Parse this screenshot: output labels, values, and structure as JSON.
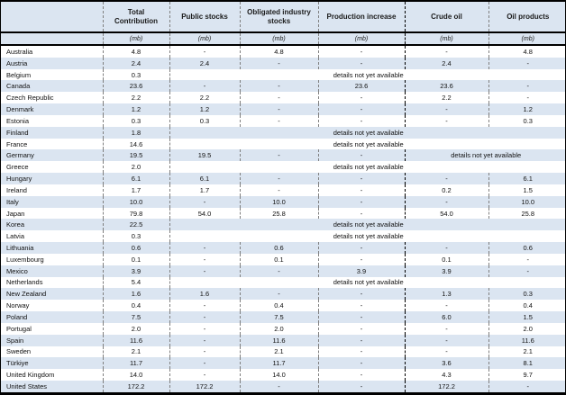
{
  "table": {
    "details_text": "details not yet available",
    "columns": [
      {
        "label": "",
        "unit": ""
      },
      {
        "label": "Total Contribution",
        "unit": "(mb)"
      },
      {
        "label": "Public stocks",
        "unit": "(mb)"
      },
      {
        "label": "Obligated industry stocks",
        "unit": "(mb)"
      },
      {
        "label": "Production increase",
        "unit": "(mb)"
      },
      {
        "label": "Crude oil",
        "unit": "(mb)"
      },
      {
        "label": "Oil products",
        "unit": "(mb)"
      }
    ],
    "rows": [
      {
        "country": "Australia",
        "values": [
          "4.8",
          "-",
          "4.8",
          "-",
          "-",
          "4.8"
        ]
      },
      {
        "country": "Austria",
        "values": [
          "2.4",
          "2.4",
          "-",
          "-",
          "2.4",
          "-"
        ]
      },
      {
        "country": "Belgium",
        "values": [
          "0.3"
        ],
        "merged": "all"
      },
      {
        "country": "Canada",
        "values": [
          "23.6",
          "-",
          "-",
          "23.6",
          "23.6",
          "-"
        ]
      },
      {
        "country": "Czech Republic",
        "values": [
          "2.2",
          "2.2",
          "-",
          "-",
          "2.2",
          "-"
        ]
      },
      {
        "country": "Denmark",
        "values": [
          "1.2",
          "1.2",
          "-",
          "-",
          "-",
          "1.2"
        ]
      },
      {
        "country": "Estonia",
        "values": [
          "0.3",
          "0.3",
          "-",
          "-",
          "-",
          "0.3"
        ]
      },
      {
        "country": "Finland",
        "values": [
          "1.8"
        ],
        "merged": "all"
      },
      {
        "country": "France",
        "values": [
          "14.6"
        ],
        "merged": "all"
      },
      {
        "country": "Germany",
        "values": [
          "19.5",
          "19.5",
          "-",
          "-"
        ],
        "merged": "right2"
      },
      {
        "country": "Greece",
        "values": [
          "2.0"
        ],
        "merged": "all"
      },
      {
        "country": "Hungary",
        "values": [
          "6.1",
          "6.1",
          "-",
          "-",
          "-",
          "6.1"
        ]
      },
      {
        "country": "Ireland",
        "values": [
          "1.7",
          "1.7",
          "-",
          "-",
          "0.2",
          "1.5"
        ]
      },
      {
        "country": "Italy",
        "values": [
          "10.0",
          "-",
          "10.0",
          "-",
          "-",
          "10.0"
        ]
      },
      {
        "country": "Japan",
        "values": [
          "79.8",
          "54.0",
          "25.8",
          "-",
          "54.0",
          "25.8"
        ]
      },
      {
        "country": "Korea",
        "values": [
          "22.5"
        ],
        "merged": "all"
      },
      {
        "country": "Latvia",
        "values": [
          "0.3"
        ],
        "merged": "all"
      },
      {
        "country": "Lithuania",
        "values": [
          "0.6",
          "-",
          "0.6",
          "-",
          "-",
          "0.6"
        ]
      },
      {
        "country": "Luxembourg",
        "values": [
          "0.1",
          "-",
          "0.1",
          "-",
          "0.1",
          "-"
        ]
      },
      {
        "country": "Mexico",
        "values": [
          "3.9",
          "-",
          "-",
          "3.9",
          "3.9",
          "-"
        ]
      },
      {
        "country": "Netherlands",
        "values": [
          "5.4"
        ],
        "merged": "all"
      },
      {
        "country": "New Zealand",
        "values": [
          "1.6",
          "1.6",
          "-",
          "-",
          "1.3",
          "0.3"
        ]
      },
      {
        "country": "Norway",
        "values": [
          "0.4",
          "-",
          "0.4",
          "-",
          "-",
          "0.4"
        ]
      },
      {
        "country": "Poland",
        "values": [
          "7.5",
          "-",
          "7.5",
          "-",
          "6.0",
          "1.5"
        ]
      },
      {
        "country": "Portugal",
        "values": [
          "2.0",
          "-",
          "2.0",
          "-",
          "-",
          "2.0"
        ]
      },
      {
        "country": "Spain",
        "values": [
          "11.6",
          "-",
          "11.6",
          "-",
          "-",
          "11.6"
        ]
      },
      {
        "country": "Sweden",
        "values": [
          "2.1",
          "-",
          "2.1",
          "-",
          "-",
          "2.1"
        ]
      },
      {
        "country": "Türkiye",
        "values": [
          "11.7",
          "-",
          "11.7",
          "-",
          "3.6",
          "8.1"
        ]
      },
      {
        "country": "United Kingdom",
        "values": [
          "14.0",
          "-",
          "14.0",
          "-",
          "4.3",
          "9.7"
        ]
      },
      {
        "country": "United States",
        "values": [
          "172.2",
          "172.2",
          "-",
          "-",
          "172.2",
          "-"
        ]
      }
    ]
  },
  "colors": {
    "header_bg": "#dbe5f1",
    "row_alt_bg": "#dbe5f1",
    "border": "#000000",
    "dashed_separator": "#808080"
  }
}
